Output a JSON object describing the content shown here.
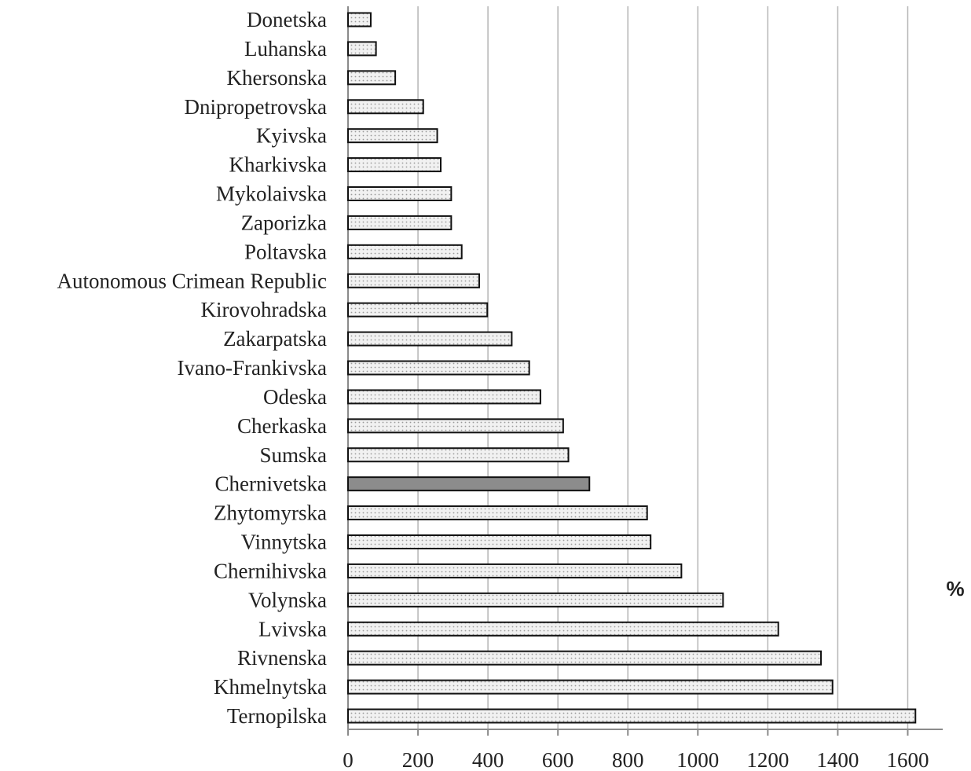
{
  "chart_data": {
    "type": "bar",
    "orientation": "horizontal",
    "categories": [
      "Donetska",
      "Luhanska",
      "Khersonska",
      "Dnipropetrovska",
      "Kyivska",
      "Kharkivska",
      "Mykolaivska",
      "Zaporizka",
      "Poltavska",
      "Autonomous Crimean Republic",
      "Kirovohradska",
      "Zakarpatska",
      "Ivano-Frankivska",
      "Odeska",
      "Cherkaska",
      "Sumska",
      "Chernivetska",
      "Zhytomyrska",
      "Vinnytska",
      "Chernihivska",
      "Volynska",
      "Lvivska",
      "Rivnenska",
      "Khmelnytska",
      "Ternopilska"
    ],
    "values": [
      65,
      80,
      135,
      215,
      255,
      265,
      295,
      295,
      325,
      375,
      398,
      468,
      518,
      550,
      615,
      630,
      690,
      855,
      865,
      953,
      1072,
      1230,
      1352,
      1385,
      1622
    ],
    "highlight_category": "Chernivetska",
    "xlim": [
      0,
      1700
    ],
    "xticks": [
      0,
      200,
      400,
      600,
      800,
      1000,
      1200,
      1400,
      1600
    ],
    "unit_label": "%",
    "grid": "vertical",
    "legend": "none",
    "colors": {
      "bar_fill": "#f1f1f1",
      "bar_dots": "#9a9a9a",
      "highlight_fill": "#8c8c8c",
      "bar_stroke": "#111111",
      "grid": "#b5b5b5"
    }
  }
}
